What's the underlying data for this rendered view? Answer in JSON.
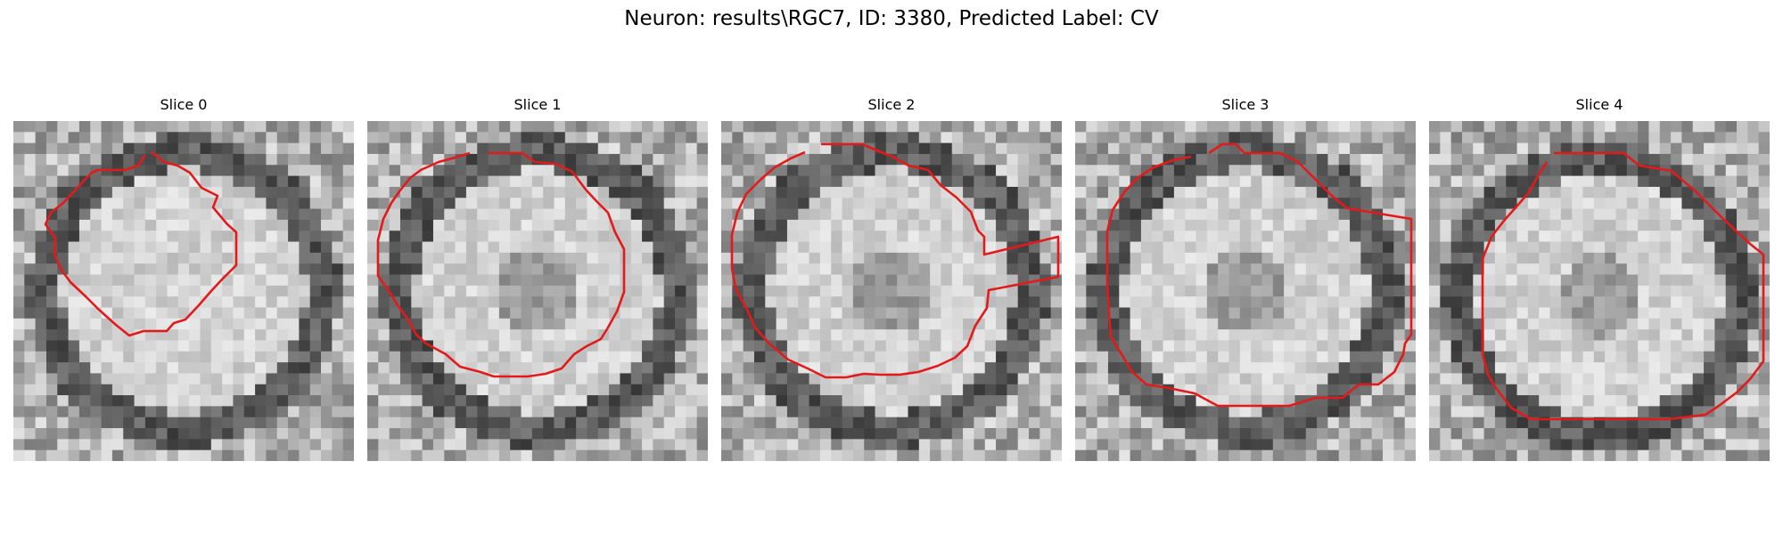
{
  "figure": {
    "title": "Neuron: results\\RGC7, ID: 3380, Predicted Label: CV"
  },
  "colors": {
    "contour": "#e31a1c",
    "background": "#ffffff"
  },
  "panels": [
    {
      "title": "Slice 0",
      "seed": 11,
      "dark_center": false
    },
    {
      "title": "Slice 1",
      "seed": 23,
      "dark_center": true
    },
    {
      "title": "Slice 2",
      "seed": 37,
      "dark_center": true
    },
    {
      "title": "Slice 3",
      "seed": 51,
      "dark_center": true
    },
    {
      "title": "Slice 4",
      "seed": 67,
      "dark_center": true
    }
  ]
}
